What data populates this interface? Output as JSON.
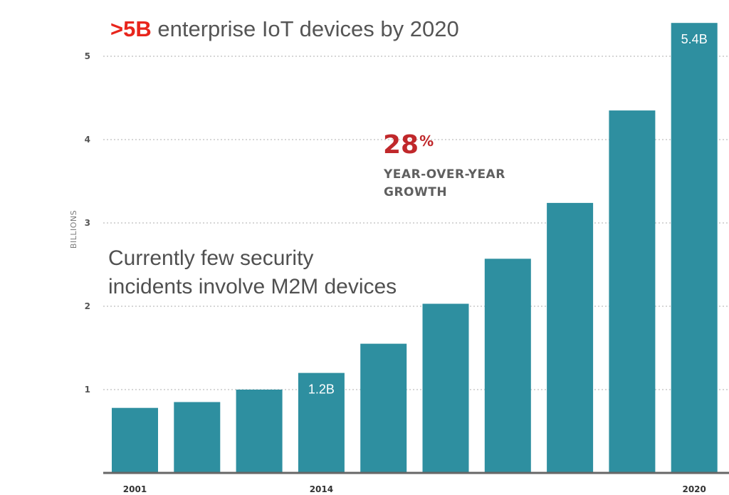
{
  "title": {
    "highlight": ">5B",
    "rest": "enterprise IoT devices by 2020"
  },
  "growth": {
    "percent": "28",
    "percent_sign": "%",
    "line1": "YEAR-OVER-YEAR",
    "line2": "GROWTH"
  },
  "note": {
    "line1": "Currently few security",
    "line2": "incidents involve M2M devices"
  },
  "colors": {
    "bar": "#2e8fa0",
    "highlight": "#e8251c",
    "growth": "#c0282b",
    "grid": "#c8c8c8",
    "axis": "#666666"
  },
  "chart_data": {
    "type": "bar",
    "title": ">5B enterprise IoT devices by 2020",
    "ylabel": "BILLIONS",
    "xlabel": "",
    "ylim": [
      0,
      5.3
    ],
    "yticks": [
      1,
      2,
      3,
      4,
      5
    ],
    "grid": true,
    "bars": [
      {
        "x_label": "2001",
        "value": 0.78,
        "data_label": ""
      },
      {
        "x_label": "",
        "value": 0.85,
        "data_label": ""
      },
      {
        "x_label": "",
        "value": 1.0,
        "data_label": ""
      },
      {
        "x_label": "2014",
        "value": 1.2,
        "data_label": "1.2B"
      },
      {
        "x_label": "",
        "value": 1.55,
        "data_label": ""
      },
      {
        "x_label": "",
        "value": 2.03,
        "data_label": ""
      },
      {
        "x_label": "",
        "value": 2.57,
        "data_label": ""
      },
      {
        "x_label": "",
        "value": 3.24,
        "data_label": ""
      },
      {
        "x_label": "",
        "value": 4.35,
        "data_label": ""
      },
      {
        "x_label": "2020",
        "value": 5.4,
        "data_label": "5.4B"
      }
    ]
  }
}
